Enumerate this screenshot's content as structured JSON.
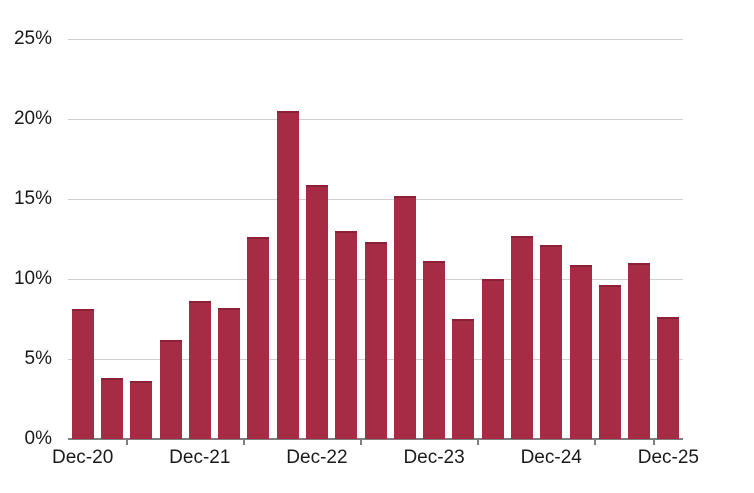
{
  "page": {
    "background": "#FFFFFF"
  },
  "chart_data": {
    "type": "bar",
    "title": "",
    "subtitle": "",
    "legend": false,
    "grid": true,
    "unit": "%",
    "categories": [
      "Dec-20",
      "",
      "",
      "",
      "Dec-21",
      "",
      "",
      "",
      "Dec-22",
      "",
      "",
      "",
      "Dec-23",
      "",
      "",
      "",
      "Dec-24",
      "",
      "",
      "",
      "Dec-25"
    ],
    "values": [
      8.1,
      3.8,
      3.6,
      6.2,
      8.6,
      8.2,
      12.6,
      20.5,
      15.9,
      13.0,
      12.3,
      15.2,
      11.1,
      7.5,
      10.0,
      12.7,
      12.1,
      10.9,
      9.6,
      11.0,
      7.6
    ],
    "y_axis": {
      "ylim": [
        0,
        25
      ],
      "tick_values": [
        25,
        20,
        15,
        10,
        5,
        0
      ],
      "tick_labels": [
        "25%",
        "20%",
        "15%",
        "10%",
        "5%",
        "0%"
      ]
    },
    "x_axis": {
      "labels": [
        "Dec-20",
        "Dec-21",
        "Dec-22",
        "Dec-23",
        "Dec-24",
        "Dec-25"
      ],
      "labeled_indices": [
        0,
        4,
        8,
        12,
        16,
        20
      ],
      "tick_boundaries": [
        2,
        6,
        10,
        14,
        18,
        20
      ]
    },
    "colors": {
      "bar": "#A62B45",
      "bar_top_edge": "#8B2137",
      "gridline": "#CFCFCF",
      "axis": "#7F7F7F",
      "text": "#1A1A1A"
    }
  }
}
